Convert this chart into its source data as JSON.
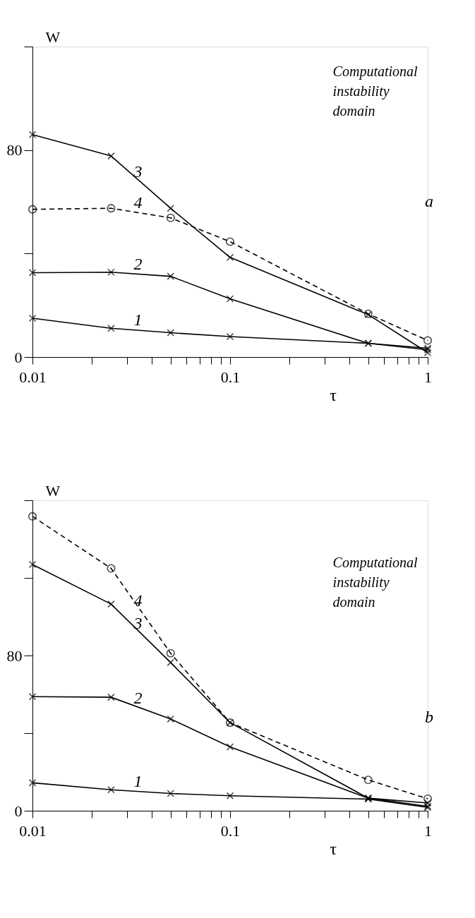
{
  "chart_data": [
    {
      "type": "line",
      "ylabel": "W",
      "xlabel": "τ",
      "log": "x",
      "grid": false,
      "x": [
        0.01,
        0.025,
        0.05,
        0.1,
        0.5,
        1
      ],
      "xlim": [
        0.01,
        1
      ],
      "ylim": [
        0,
        120
      ],
      "xticks": [
        0.01,
        {
          "value": 0.02,
          "label": null
        },
        {
          "value": 0.03,
          "label": null
        },
        {
          "value": 0.04,
          "label": null
        },
        {
          "value": 0.05,
          "label": null
        },
        {
          "value": 0.06,
          "label": null
        },
        {
          "value": 0.07,
          "label": null
        },
        {
          "value": 0.08,
          "label": null
        },
        {
          "value": 0.09,
          "label": null
        },
        0.1,
        {
          "value": 0.2,
          "label": null
        },
        {
          "value": 0.3,
          "label": null
        },
        {
          "value": 0.4,
          "label": null
        },
        {
          "value": 0.5,
          "label": null
        },
        {
          "value": 0.6,
          "label": null
        },
        {
          "value": 0.7,
          "label": null
        },
        {
          "value": 0.8,
          "label": null
        },
        {
          "value": 0.9,
          "label": null
        },
        1
      ],
      "yticks": [
        0,
        {
          "value": 40,
          "label": null
        },
        80,
        {
          "value": 120,
          "label": null
        }
      ],
      "annotations": [
        "Computational instability domain",
        "a"
      ],
      "series": [
        {
          "name": "1",
          "color": "#000000",
          "marker": "cross",
          "line_style": "solid",
          "values": [
            15,
            11.1,
            9.4,
            7.9,
            5.3,
            2.8
          ]
        },
        {
          "name": "2",
          "color": "#000000",
          "marker": "cross",
          "line_style": "solid",
          "values": [
            32.6,
            32.8,
            31.2,
            22.5,
            5.3,
            3.4
          ]
        },
        {
          "name": "3",
          "color": "#000000",
          "marker": "cross",
          "line_style": "solid",
          "values": [
            86,
            77.7,
            57.5,
            38.5,
            16.4,
            1.7
          ]
        },
        {
          "name": "4",
          "color": "#000000",
          "marker": "circle",
          "line_style": "dashed",
          "values": [
            57.1,
            57.5,
            53.8,
            44.6,
            16.7,
            6.4
          ]
        }
      ]
    },
    {
      "type": "line",
      "ylabel": "W",
      "xlabel": "τ",
      "log": "x",
      "grid": false,
      "x": [
        0.01,
        0.025,
        0.05,
        0.1,
        0.5,
        1
      ],
      "xlim": [
        0.01,
        1
      ],
      "ylim": [
        0,
        160
      ],
      "xticks": [
        0.01,
        {
          "value": 0.02,
          "label": null
        },
        {
          "value": 0.03,
          "label": null
        },
        {
          "value": 0.04,
          "label": null
        },
        {
          "value": 0.05,
          "label": null
        },
        {
          "value": 0.06,
          "label": null
        },
        {
          "value": 0.07,
          "label": null
        },
        {
          "value": 0.08,
          "label": null
        },
        {
          "value": 0.09,
          "label": null
        },
        0.1,
        {
          "value": 0.2,
          "label": null
        },
        {
          "value": 0.3,
          "label": null
        },
        {
          "value": 0.4,
          "label": null
        },
        {
          "value": 0.5,
          "label": null
        },
        {
          "value": 0.6,
          "label": null
        },
        {
          "value": 0.7,
          "label": null
        },
        {
          "value": 0.8,
          "label": null
        },
        {
          "value": 0.9,
          "label": null
        },
        1
      ],
      "yticks": [
        0,
        {
          "value": 40,
          "label": null
        },
        80,
        {
          "value": 120,
          "label": null
        },
        {
          "value": 160,
          "label": null
        }
      ],
      "annotations": [
        "Computational instability domain",
        "b"
      ],
      "series": [
        {
          "name": "1",
          "color": "#000000",
          "marker": "cross",
          "line_style": "solid",
          "values": [
            14.4,
            10.8,
            8.9,
            7.7,
            6,
            1.7
          ]
        },
        {
          "name": "2",
          "color": "#000000",
          "marker": "cross",
          "line_style": "solid",
          "values": [
            58.8,
            58.5,
            47.3,
            32.9,
            6.5,
            4
          ]
        },
        {
          "name": "3",
          "color": "#000000",
          "marker": "cross",
          "line_style": "solid",
          "values": [
            126.9,
            106.5,
            76.4,
            45.4,
            6.5,
            2.3
          ]
        },
        {
          "name": "4",
          "color": "#000000",
          "marker": "circle",
          "line_style": "dashed",
          "values": [
            151.7,
            124.9,
            81.2,
            45.4,
            15.9,
            6.2
          ]
        }
      ]
    }
  ]
}
